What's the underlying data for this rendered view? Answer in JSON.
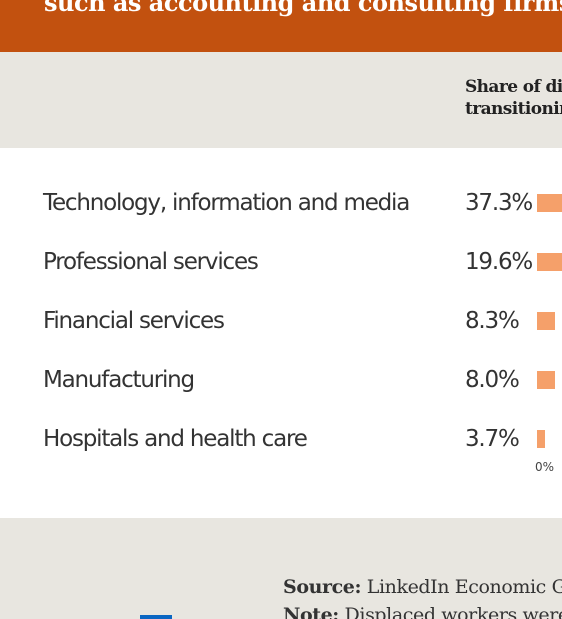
{
  "banner": {
    "text": "such as accounting and consulting firms."
  },
  "header": {
    "col_line1": "Share of di",
    "col_line2": "transitionin"
  },
  "colors": {
    "banner": "#c2510f",
    "band": "#e8e6e0",
    "bar": "#f5a06a",
    "logo": "#0a66c2"
  },
  "chart_data": {
    "type": "bar",
    "orientation": "horizontal",
    "categories": [
      "Technology, information and media",
      "Professional services",
      "Financial services",
      "Manufacturing",
      "Hospitals and health care"
    ],
    "values": [
      37.3,
      19.6,
      8.3,
      8.0,
      3.7
    ],
    "value_labels": [
      "37.3%",
      "19.6%",
      "8.3%",
      "8.0%",
      "3.7%"
    ],
    "x_tick_labels": [
      "0%"
    ],
    "xlim": [
      0,
      40
    ]
  },
  "footer": {
    "source_label": "Source:",
    "source_text": " LinkedIn Economic Gr",
    "note_label": "Note:",
    "note_text": " Displaced workers were"
  },
  "logo_icon": "linkedin-logo-icon"
}
